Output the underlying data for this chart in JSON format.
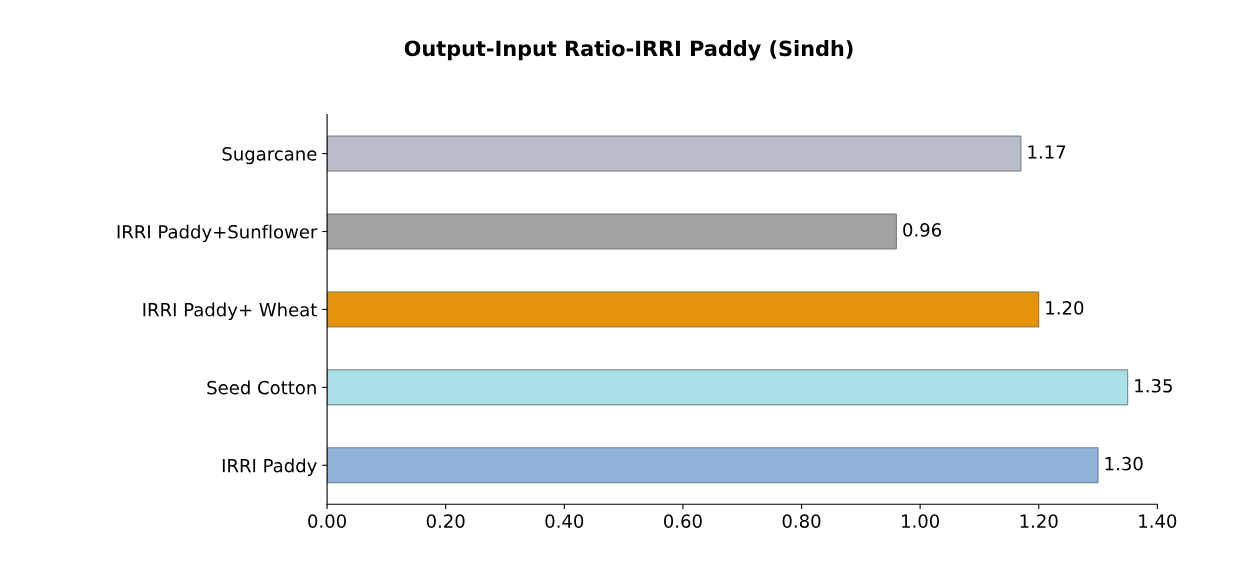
{
  "chart_data": {
    "type": "bar",
    "orientation": "horizontal",
    "title": "Output-Input Ratio-IRRI Paddy (Sindh)",
    "categories": [
      "Sugarcane",
      "IRRI Paddy+Sunflower",
      "IRRI Paddy+ Wheat",
      "Seed Cotton",
      "IRRI Paddy"
    ],
    "values": [
      1.17,
      0.96,
      1.2,
      1.35,
      1.3
    ],
    "value_labels": [
      "1.17",
      "0.96",
      "1.20",
      "1.35",
      "1.30"
    ],
    "colors": [
      "#b9bdc9",
      "#a3a3a3",
      "#e3940c",
      "#a9dfe7",
      "#8fb3d9"
    ],
    "xlim": [
      0,
      1.4
    ],
    "xticks": [
      {
        "value": 0,
        "label": "0.00"
      },
      {
        "value": 0.2,
        "label": "0.20"
      },
      {
        "value": 0.4,
        "label": "0.40"
      },
      {
        "value": 0.6,
        "label": "0.60"
      },
      {
        "value": 0.8,
        "label": "0.80"
      },
      {
        "value": 1.0,
        "label": "1.00"
      },
      {
        "value": 1.2,
        "label": "1.20"
      },
      {
        "value": 1.4,
        "label": "1.40"
      }
    ],
    "grid": false
  }
}
